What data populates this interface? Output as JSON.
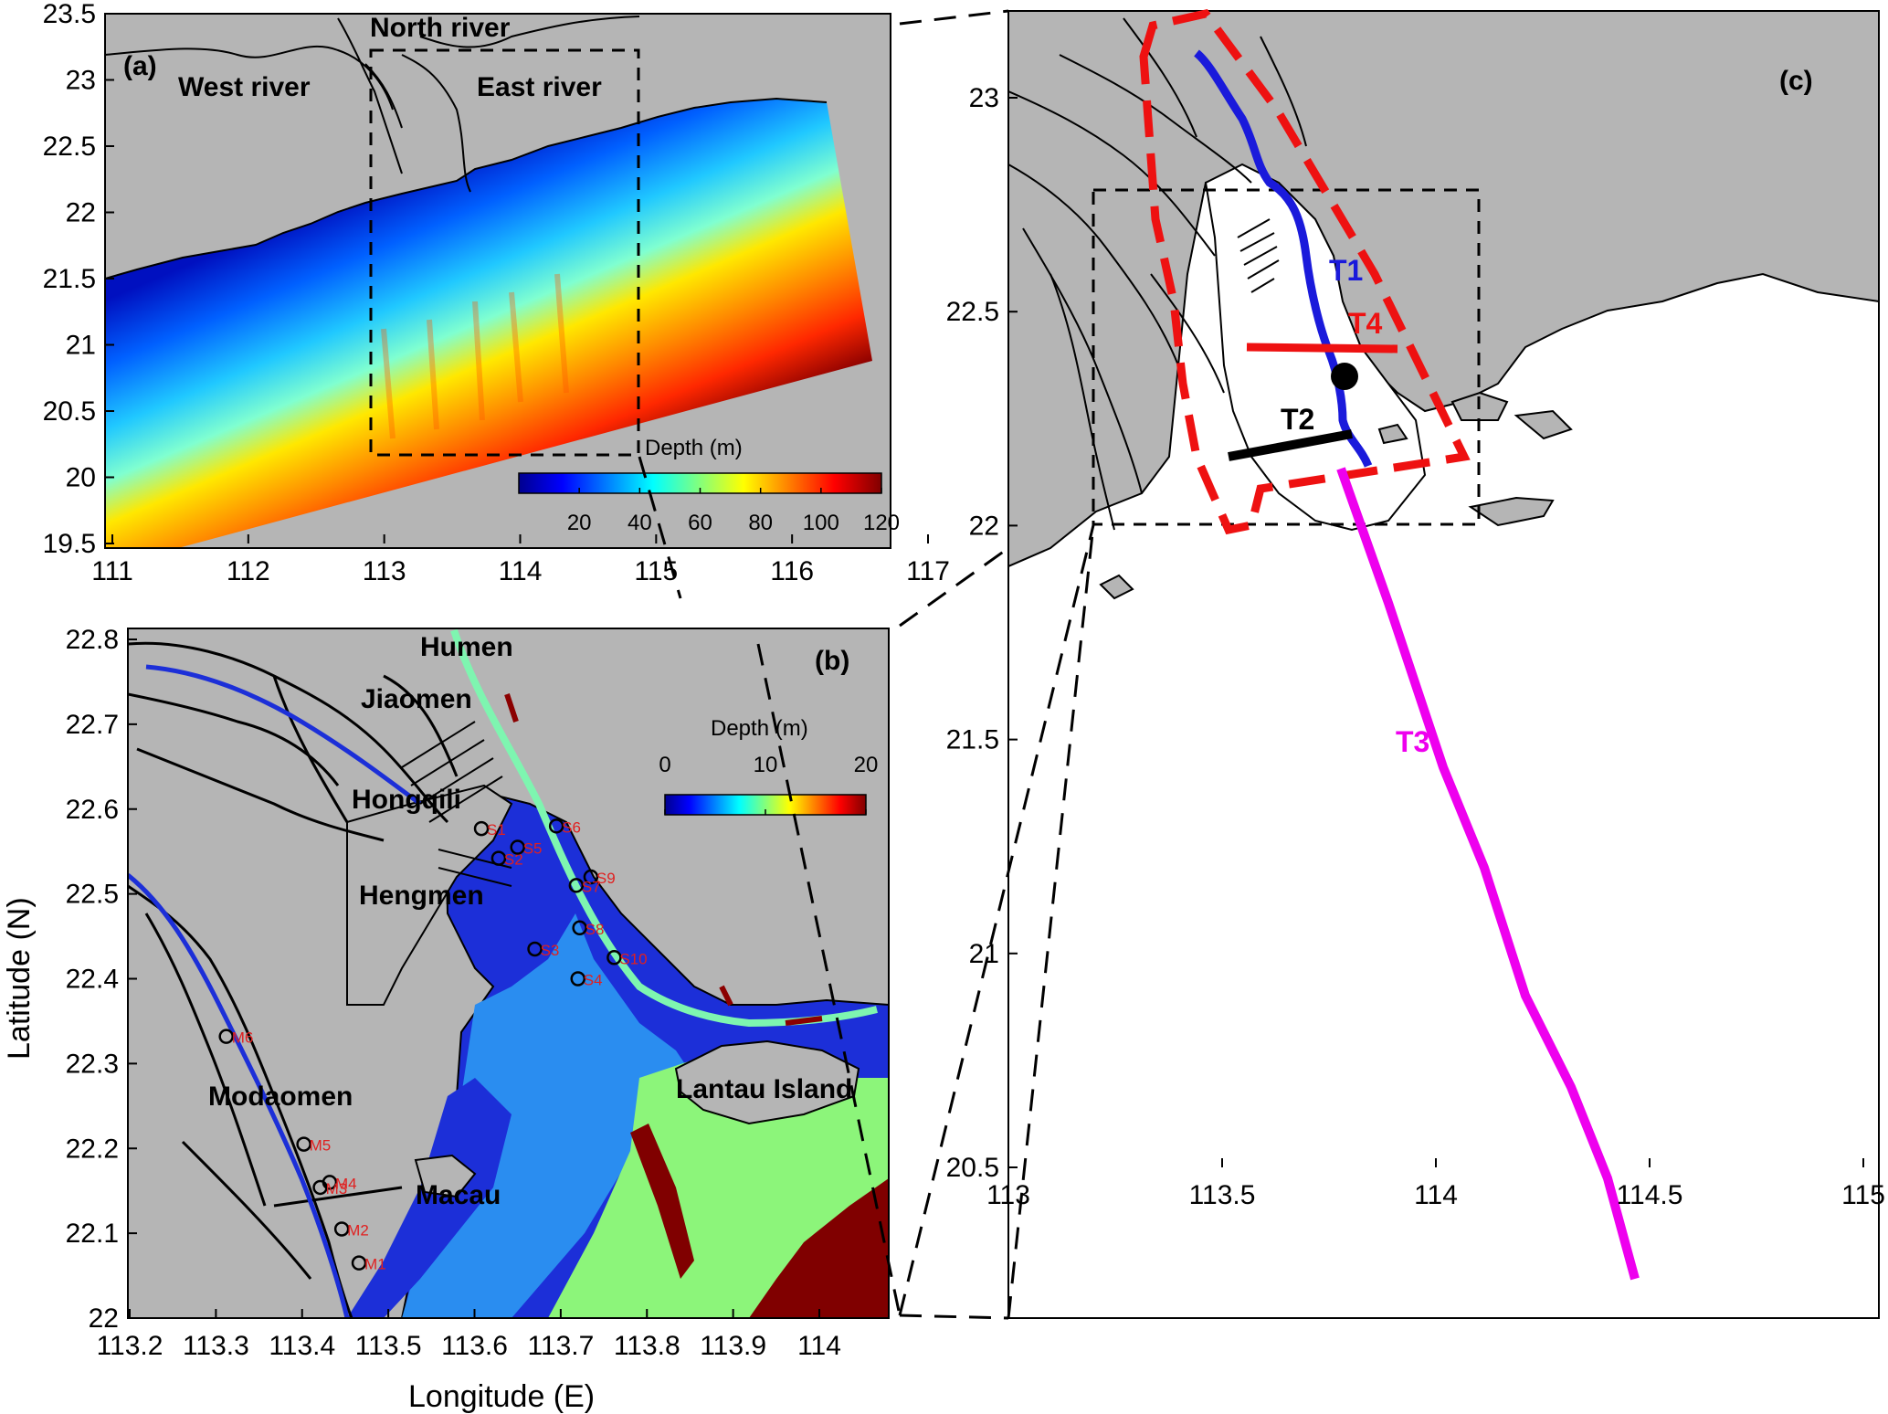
{
  "panel_a": {
    "label": "(a)",
    "place_labels": {
      "north": "North river",
      "west": "West river",
      "east": "East river"
    },
    "x_ticks": [
      "111",
      "112",
      "113",
      "114",
      "115",
      "116",
      "117"
    ],
    "y_ticks": [
      "23.5",
      "23",
      "22.5",
      "22",
      "21.5",
      "21",
      "20.5",
      "20",
      "19.5"
    ],
    "colorbar": {
      "title": "Depth (m)",
      "ticks": [
        "20",
        "40",
        "60",
        "80",
        "100",
        "120"
      ],
      "range": [
        0,
        120
      ]
    }
  },
  "panel_b": {
    "label": "(b)",
    "place_labels": {
      "humen": "Humen",
      "jiaomen": "Jiaomen",
      "hongqili": "Hongqili",
      "hengmen": "Hengmen",
      "modaomen": "Modaomen",
      "macau": "Macau",
      "lantau": "Lantau Island"
    },
    "x_ticks": [
      "113.2",
      "113.3",
      "113.4",
      "113.5",
      "113.6",
      "113.7",
      "113.8",
      "113.9",
      "114"
    ],
    "y_ticks": [
      "22.8",
      "22.7",
      "22.6",
      "22.5",
      "22.4",
      "22.3",
      "22.2",
      "22.1",
      "22"
    ],
    "colorbar": {
      "title": "Depth  (m)",
      "ticks": [
        "0",
        "10",
        "20"
      ],
      "range": [
        0,
        20
      ]
    },
    "stations": [
      {
        "name": "S1",
        "lon": 113.608,
        "lat": 22.577
      },
      {
        "name": "S2",
        "lon": 113.628,
        "lat": 22.542
      },
      {
        "name": "S5",
        "lon": 113.65,
        "lat": 22.555
      },
      {
        "name": "S6",
        "lon": 113.695,
        "lat": 22.58
      },
      {
        "name": "S9",
        "lon": 113.735,
        "lat": 22.52
      },
      {
        "name": "S7",
        "lon": 113.718,
        "lat": 22.51
      },
      {
        "name": "S8",
        "lon": 113.722,
        "lat": 22.46
      },
      {
        "name": "S3",
        "lon": 113.67,
        "lat": 22.435
      },
      {
        "name": "S10",
        "lon": 113.762,
        "lat": 22.425
      },
      {
        "name": "S4",
        "lon": 113.72,
        "lat": 22.4
      },
      {
        "name": "M6",
        "lon": 113.312,
        "lat": 22.332
      },
      {
        "name": "M5",
        "lon": 113.402,
        "lat": 22.205
      },
      {
        "name": "M4",
        "lon": 113.432,
        "lat": 22.16
      },
      {
        "name": "M3",
        "lon": 113.421,
        "lat": 22.154
      },
      {
        "name": "M2",
        "lon": 113.446,
        "lat": 22.105
      },
      {
        "name": "M1",
        "lon": 113.466,
        "lat": 22.065
      }
    ]
  },
  "panel_c": {
    "label": "(c)",
    "x_ticks": [
      "113",
      "113.5",
      "114",
      "114.5",
      "115"
    ],
    "y_ticks": [
      "23",
      "22.5",
      "22",
      "21.5",
      "21",
      "20.5"
    ],
    "transects": [
      {
        "name": "T1",
        "color": "#1a1adb"
      },
      {
        "name": "T2",
        "color": "#000000"
      },
      {
        "name": "T3",
        "color": "#ee00ee"
      },
      {
        "name": "T4",
        "color": "#ee1111"
      }
    ]
  },
  "axes": {
    "xlabel": "Longitude (E)",
    "ylabel": "Latitude  (N)"
  }
}
